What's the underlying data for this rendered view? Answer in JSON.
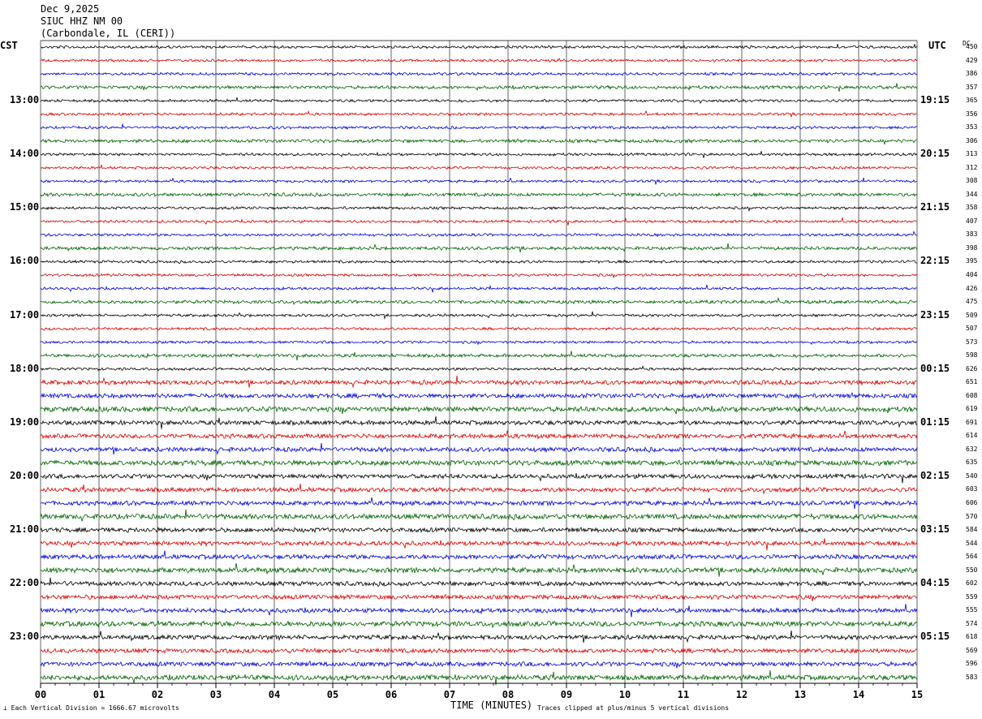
{
  "header": {
    "date": "Dec 9,2025",
    "station": "SIUC HHZ NM 00",
    "location": "(Carbondale, IL (CERI))"
  },
  "left_zone": "CST",
  "right_zone": "UTC",
  "dc_header": "DC",
  "footer": {
    "left": "Each Vertical Division = 1666.67 microvolts",
    "center": "TIME (MINUTES)",
    "right": "Traces clipped at plus/minus 5 vertical divisions"
  },
  "chart_data": {
    "type": "line",
    "title": "SIUC HHZ NM 00",
    "xlabel": "TIME (MINUTES)",
    "xlim": [
      0,
      15
    ],
    "x_ticks": [
      "00",
      "01",
      "02",
      "03",
      "04",
      "05",
      "06",
      "07",
      "08",
      "09",
      "10",
      "11",
      "12",
      "13",
      "14",
      "15"
    ],
    "trace_colors": [
      "#000000",
      "#e00000",
      "#0000e0",
      "#006400"
    ],
    "rows": 48,
    "left_hour_labels": [
      "13:00",
      "14:00",
      "15:00",
      "16:00",
      "17:00",
      "18:00",
      "19:00",
      "20:00",
      "21:00",
      "22:00",
      "23:00"
    ],
    "right_hour_labels": [
      "19:15",
      "20:15",
      "21:15",
      "22:15",
      "23:15",
      "00:15",
      "01:15",
      "02:15",
      "03:15",
      "04:15",
      "05:15"
    ],
    "hour_label_first_row": 4,
    "hour_label_every": 4,
    "dc_offsets": [
      450,
      429,
      386,
      357,
      365,
      356,
      353,
      306,
      313,
      312,
      308,
      344,
      358,
      407,
      383,
      398,
      395,
      404,
      426,
      475,
      509,
      507,
      573,
      598,
      626,
      651,
      608,
      619,
      691,
      614,
      632,
      635,
      540,
      603,
      606,
      570,
      584,
      544,
      564,
      550,
      602,
      559,
      555,
      574,
      618,
      569,
      596,
      583
    ]
  }
}
